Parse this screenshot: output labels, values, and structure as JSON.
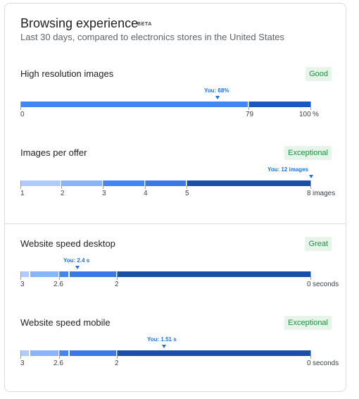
{
  "header": {
    "title": "Browsing experience",
    "beta": "BETA",
    "subtitle": "Last 30 days, compared to electronics stores in the United States"
  },
  "metrics": [
    {
      "title": "High resolution images",
      "badge": "Good",
      "you_label": "You: 68%",
      "ticks": [
        "0",
        "79",
        "100"
      ],
      "unit": "%"
    },
    {
      "title": "Images per offer",
      "badge": "Exceptional",
      "you_label": "You: 12 images",
      "ticks": [
        "1",
        "2",
        "3",
        "4",
        "5",
        "8"
      ],
      "unit": "images"
    },
    {
      "title": "Website speed desktop",
      "badge": "Great",
      "you_label": "You: 2.4 s",
      "ticks": [
        "3",
        "2.6",
        "2",
        "0"
      ],
      "unit": "seconds"
    },
    {
      "title": "Website speed mobile",
      "badge": "Exceptional",
      "you_label": "You: 1.51 s",
      "ticks": [
        "3",
        "2.6",
        "2",
        "0"
      ],
      "unit": "seconds"
    }
  ],
  "colors": {
    "seg_lightest": "#aecbfa",
    "seg_light": "#8ab4f8",
    "seg_mid": "#4285f4",
    "seg_dark": "#1a73e8",
    "seg_darkest": "#174ea6",
    "badge_bg": "#e6f4ea",
    "badge_text": "#1e8e3e"
  }
}
